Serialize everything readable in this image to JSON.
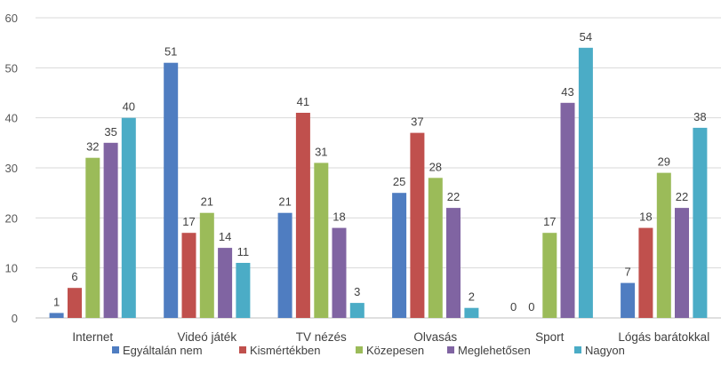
{
  "chart_data": {
    "type": "bar",
    "title": "",
    "xlabel": "",
    "ylabel": "",
    "ylim": [
      0,
      60
    ],
    "yticks": [
      0,
      10,
      20,
      30,
      40,
      50,
      60
    ],
    "grid": true,
    "legend_position": "bottom",
    "categories": [
      "Internet",
      "Videó játék",
      "TV nézés",
      "Olvasás",
      "Sport",
      "Lógás barátokkal"
    ],
    "series": [
      {
        "name": "Egyáltalán nem",
        "color": "#4F7DC1",
        "values": [
          1,
          51,
          21,
          25,
          0,
          7
        ]
      },
      {
        "name": "Kismértékben",
        "color": "#C0504D",
        "values": [
          6,
          17,
          41,
          37,
          0,
          18
        ]
      },
      {
        "name": "Közepesen",
        "color": "#9BBB59",
        "values": [
          32,
          21,
          31,
          28,
          17,
          29
        ]
      },
      {
        "name": "Meglehetősen",
        "color": "#8064A2",
        "values": [
          35,
          14,
          18,
          22,
          43,
          22
        ]
      },
      {
        "name": "Nagyon",
        "color": "#4BACC6",
        "values": [
          40,
          11,
          3,
          2,
          54,
          38
        ]
      }
    ]
  }
}
